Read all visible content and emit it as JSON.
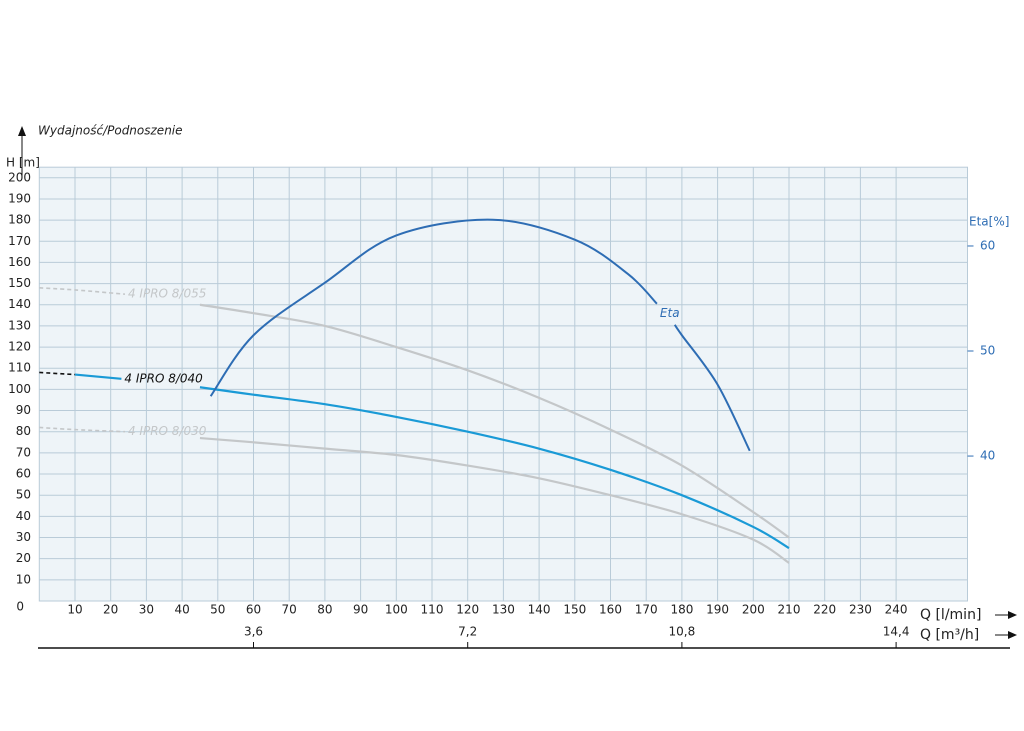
{
  "chart_data": {
    "type": "line",
    "title": "Wydajność/Podnoszenie",
    "y_label": "H [m]",
    "y2_label": "Eta[%]",
    "x_label": "Q [l/min]",
    "x2_label": "Q [m³/h]",
    "xlim": [
      0,
      260
    ],
    "xticks": [
      10,
      20,
      30,
      40,
      50,
      60,
      70,
      80,
      90,
      100,
      110,
      120,
      130,
      140,
      150,
      160,
      170,
      180,
      190,
      200,
      210,
      220,
      230,
      240
    ],
    "ylim": [
      0,
      205
    ],
    "yticks": [
      0,
      10,
      20,
      30,
      40,
      50,
      60,
      70,
      80,
      90,
      100,
      110,
      120,
      130,
      140,
      150,
      160,
      170,
      180,
      190,
      200
    ],
    "y2lim": [
      26.2,
      67.5
    ],
    "y2ticks": [
      40,
      50,
      60
    ],
    "x2lim": [
      0,
      15.6
    ],
    "x2ticks": [
      {
        "value": 3.6,
        "label": "3,6"
      },
      {
        "value": 7.2,
        "label": "7,2"
      },
      {
        "value": 10.8,
        "label": "10,8"
      },
      {
        "value": 14.4,
        "label": "14,4"
      }
    ],
    "grid": true,
    "series": [
      {
        "name": "4 IPRO 8/055",
        "color": "#c4c7c9",
        "extension": {
          "color": "#c4c7c9",
          "x": [
            0,
            10,
            24
          ],
          "values": [
            148,
            147,
            145
          ]
        },
        "x": [
          24,
          35,
          45,
          60,
          80,
          100,
          120,
          140,
          160,
          180,
          200,
          210
        ],
        "values": [
          145,
          null,
          140,
          136,
          130,
          120,
          109,
          96,
          81,
          64,
          42,
          30
        ]
      },
      {
        "name": "4 IPRO 8/040",
        "color": "#1a9ad6",
        "extension": {
          "color": "#111111",
          "x": [
            0,
            10
          ],
          "values": [
            108,
            107
          ]
        },
        "x": [
          10,
          23,
          35,
          45,
          60,
          80,
          100,
          120,
          140,
          160,
          180,
          200,
          210
        ],
        "values": [
          107,
          105,
          null,
          101,
          97.5,
          93,
          87,
          80,
          72,
          62,
          50,
          35,
          25
        ]
      },
      {
        "name": "4 IPRO 8/030",
        "color": "#c4c7c9",
        "extension": {
          "color": "#c4c7c9",
          "x": [
            0,
            10,
            24
          ],
          "values": [
            82,
            81,
            80
          ]
        },
        "x": [
          24,
          35,
          45,
          60,
          80,
          100,
          120,
          140,
          160,
          180,
          200,
          210
        ],
        "values": [
          80,
          null,
          77,
          75,
          72,
          69,
          64,
          58,
          50,
          41,
          29,
          18
        ]
      },
      {
        "name": "Eta",
        "color": "#2e6db4",
        "axis": "y2",
        "x": [
          48,
          60,
          80,
          100,
          127,
          150,
          165,
          173,
          175,
          178,
          180,
          190,
          199
        ],
        "values": [
          45.7,
          51.5,
          56.5,
          61,
          62.5,
          60.6,
          57.3,
          54.5,
          null,
          52.5,
          51.5,
          46.8,
          40.5
        ]
      }
    ]
  }
}
